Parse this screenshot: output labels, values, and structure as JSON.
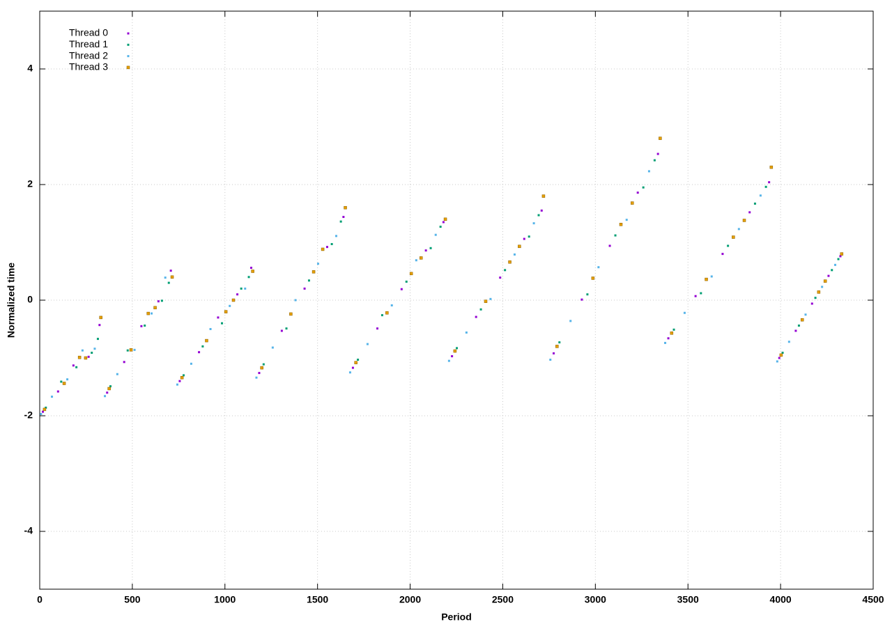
{
  "chart_data": {
    "type": "scatter",
    "x_label": "Period",
    "y_label": "Normalized time",
    "xlim": [
      0,
      4500
    ],
    "xticks": [
      0,
      500,
      1000,
      1500,
      2000,
      2500,
      3000,
      3500,
      4000,
      4500
    ],
    "ylim": [
      -5,
      5
    ],
    "yticks": [
      -4,
      -2,
      0,
      2,
      4
    ],
    "grid": true,
    "legend": "top-left",
    "series": [
      {
        "name": "Thread 0",
        "color": "#9400d3",
        "x": [
          17,
          99,
          182,
          264,
          323,
          364,
          456,
          549,
          641,
          708,
          756,
          860,
          963,
          1067,
          1142,
          1185,
          1307,
          1430,
          1552,
          1640,
          1691,
          1823,
          1954,
          2085,
          2180,
          2226,
          2356,
          2486,
          2616,
          2710,
          2775,
          2927,
          3078,
          3229,
          3338,
          3394,
          3541,
          3687,
          3833,
          3938,
          3993,
          4082,
          4170,
          4259,
          4323
        ],
        "values": [
          -1.93,
          -1.58,
          -1.13,
          -0.98,
          -0.43,
          -1.6,
          -1.07,
          -0.45,
          -0.02,
          0.51,
          -1.4,
          -0.9,
          -0.3,
          0.1,
          0.56,
          -1.26,
          -0.53,
          0.2,
          0.92,
          1.44,
          -1.17,
          -0.49,
          0.19,
          0.86,
          1.35,
          -0.97,
          -0.29,
          0.39,
          1.06,
          1.55,
          -0.92,
          0.01,
          0.94,
          1.86,
          2.53,
          -0.66,
          0.07,
          0.8,
          1.52,
          2.04,
          -1.0,
          -0.53,
          -0.06,
          0.42,
          0.76
        ]
      },
      {
        "name": "Thread 1",
        "color": "#009e73",
        "x": [
          33,
          116,
          198,
          281,
          314,
          382,
          475,
          567,
          660,
          697,
          777,
          880,
          984,
          1088,
          1129,
          1209,
          1332,
          1454,
          1577,
          1626,
          1718,
          1849,
          1980,
          2111,
          2164,
          2252,
          2382,
          2512,
          2642,
          2694,
          2806,
          2957,
          3108,
          3259,
          3320,
          3424,
          3570,
          3716,
          3862,
          3921,
          4011,
          4099,
          4188,
          4277,
          4312
        ],
        "values": [
          -1.86,
          -1.41,
          -1.16,
          -0.91,
          -0.67,
          -1.49,
          -0.87,
          -0.44,
          -0.01,
          0.3,
          -1.3,
          -0.8,
          -0.4,
          0.2,
          0.4,
          -1.11,
          -0.49,
          0.34,
          0.97,
          1.36,
          -1.03,
          -0.26,
          0.32,
          0.9,
          1.27,
          -0.83,
          -0.16,
          0.52,
          1.1,
          1.47,
          -0.73,
          0.1,
          1.12,
          1.95,
          2.42,
          -0.51,
          0.12,
          0.94,
          1.67,
          1.96,
          -0.91,
          -0.44,
          0.04,
          0.52,
          0.71
        ]
      },
      {
        "name": "Thread 2",
        "color": "#56b4e9",
        "x": [
          7,
          66,
          149,
          231,
          297,
          352,
          419,
          512,
          604,
          678,
          743,
          818,
          922,
          1026,
          1109,
          1170,
          1258,
          1381,
          1503,
          1601,
          1676,
          1770,
          1901,
          2033,
          2138,
          2210,
          2304,
          2434,
          2564,
          2668,
          2757,
          2866,
          3017,
          3169,
          3290,
          3377,
          3482,
          3628,
          3775,
          3892,
          3982,
          4046,
          4135,
          4224,
          4295
        ],
        "values": [
          -1.97,
          -1.67,
          -1.37,
          -0.87,
          -0.84,
          -1.66,
          -1.28,
          -0.86,
          -0.23,
          0.39,
          -1.46,
          -1.1,
          -0.5,
          -0.1,
          0.2,
          -1.34,
          -0.82,
          0.0,
          0.63,
          1.11,
          -1.25,
          -0.76,
          -0.09,
          0.69,
          1.13,
          -1.05,
          -0.56,
          0.02,
          0.79,
          1.33,
          -1.03,
          -0.36,
          0.57,
          1.39,
          2.23,
          -0.74,
          -0.22,
          0.41,
          1.23,
          1.81,
          -1.06,
          -0.72,
          -0.25,
          0.23,
          0.61
        ]
      },
      {
        "name": "Thread 3",
        "color": "#e69f00",
        "x": [
          26,
          132,
          215,
          248,
          330,
          375,
          493,
          586,
          623,
          715,
          768,
          901,
          1005,
          1046,
          1150,
          1199,
          1356,
          1479,
          1528,
          1650,
          1707,
          1875,
          2006,
          2059,
          2190,
          2242,
          2408,
          2538,
          2590,
          2720,
          2793,
          2987,
          3138,
          3199,
          3350,
          3412,
          3599,
          3745,
          3804,
          3950,
          4003,
          4117,
          4206,
          4241,
          4330
        ],
        "values": [
          -1.89,
          -1.44,
          -0.99,
          -1.0,
          -0.3,
          -1.53,
          -0.86,
          -0.23,
          -0.13,
          0.4,
          -1.34,
          -0.7,
          -0.2,
          0.0,
          0.5,
          -1.17,
          -0.24,
          0.49,
          0.88,
          1.6,
          -1.08,
          -0.22,
          0.46,
          0.73,
          1.4,
          -0.88,
          -0.02,
          0.66,
          0.93,
          1.8,
          -0.8,
          0.38,
          1.31,
          1.68,
          2.8,
          -0.57,
          0.36,
          1.09,
          1.38,
          2.3,
          -0.95,
          -0.34,
          0.14,
          0.33,
          0.8
        ]
      }
    ]
  }
}
